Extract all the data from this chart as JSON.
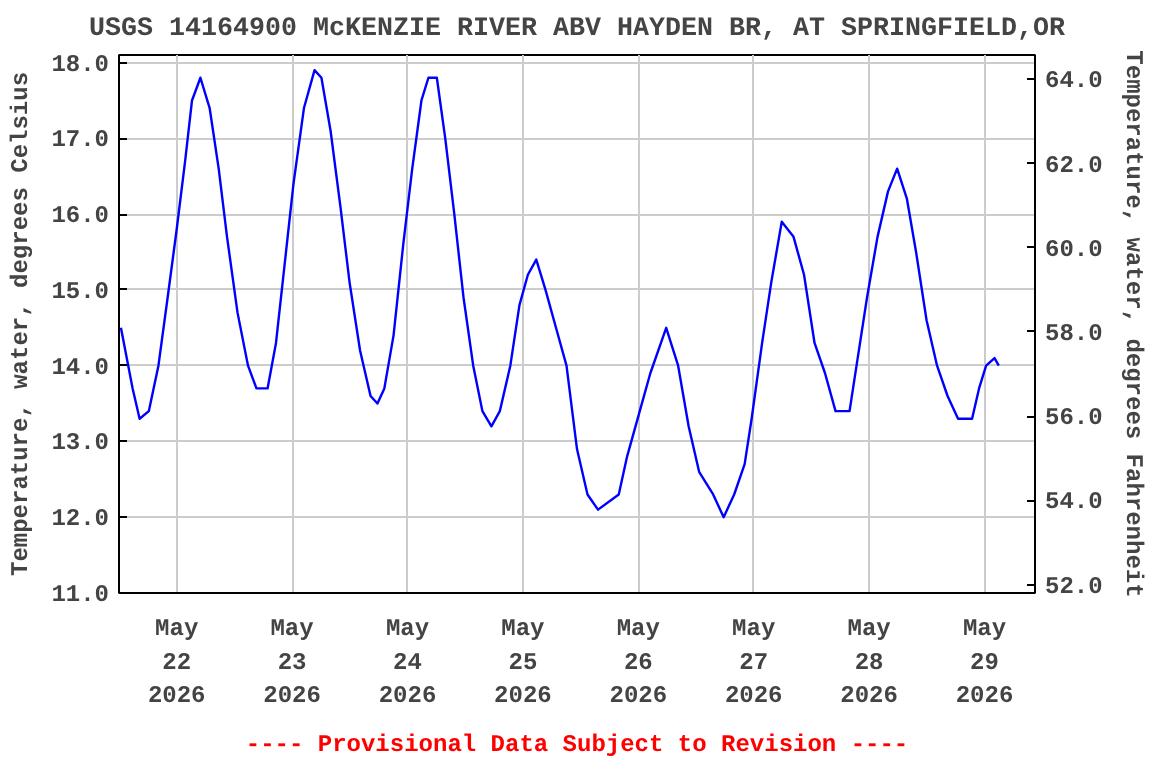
{
  "chart_data": {
    "type": "line",
    "title": "USGS 14164900 McKENZIE RIVER ABV HAYDEN BR, AT SPRINGFIELD,OR",
    "ylabel": "Temperature, water, degrees Celsius",
    "y2label": "Temperature, water, degrees Fahrenheit",
    "annotations": [
      "---- Provisional Data Subject to Revision ----"
    ],
    "x": [
      "2026-05-21T12:24",
      "2026-05-21T14:50",
      "2026-05-21T16:17",
      "2026-05-21T18:12",
      "2026-05-21T20:12",
      "2026-05-21T22:07",
      "2026-05-22T00:00",
      "2026-05-22T01:45",
      "2026-05-22T03:11",
      "2026-05-22T04:56",
      "2026-05-22T06:51",
      "2026-05-22T08:44",
      "2026-05-22T10:28",
      "2026-05-22T12:39",
      "2026-05-22T14:50",
      "2026-05-22T16:35",
      "2026-05-22T18:54",
      "2026-05-22T20:39",
      "2026-05-22T22:23",
      "2026-05-23T00:17",
      "2026-05-23T02:28",
      "2026-05-23T04:40",
      "2026-05-23T06:06",
      "2026-05-23T08:00",
      "2026-05-23T10:03",
      "2026-05-23T11:57",
      "2026-05-23T14:08",
      "2026-05-23T16:19",
      "2026-05-23T17:45",
      "2026-05-23T19:11",
      "2026-05-23T21:06",
      "2026-05-23T23:07",
      "2026-05-24T00:59",
      "2026-05-24T02:54",
      "2026-05-24T04:21",
      "2026-05-24T06:06",
      "2026-05-24T07:51",
      "2026-05-24T09:44",
      "2026-05-24T11:39",
      "2026-05-24T13:40",
      "2026-05-24T15:35",
      "2026-05-24T17:27",
      "2026-05-24T19:12",
      "2026-05-24T21:23",
      "2026-05-24T23:17",
      "2026-05-25T01:02",
      "2026-05-25T02:47",
      "2026-05-25T04:42",
      "2026-05-25T06:53",
      "2026-05-25T09:04",
      "2026-05-25T11:15",
      "2026-05-25T13:26",
      "2026-05-25T15:37",
      "2026-05-25T19:56",
      "2026-05-25T21:40",
      "2026-05-26T00:18",
      "2026-05-26T02:30",
      "2026-05-26T05:48",
      "2026-05-26T08:17",
      "2026-05-26T10:28",
      "2026-05-26T12:39",
      "2026-05-26T15:34",
      "2026-05-26T17:45",
      "2026-05-26T19:56",
      "2026-05-26T22:07",
      "2026-05-26T23:34",
      "2026-05-27T01:45",
      "2026-05-27T03:39",
      "2026-05-27T05:50",
      "2026-05-27T08:17",
      "2026-05-27T10:28",
      "2026-05-27T12:39",
      "2026-05-27T14:50",
      "2026-05-27T17:01",
      "2026-05-27T19:56",
      "2026-05-27T21:23",
      "2026-05-27T23:34",
      "2026-05-28T01:45",
      "2026-05-28T03:56",
      "2026-05-28T05:50",
      "2026-05-28T07:52",
      "2026-05-28T09:46",
      "2026-05-28T11:57",
      "2026-05-28T14:08",
      "2026-05-28T16:19",
      "2026-05-28T18:30",
      "2026-05-28T21:25",
      "2026-05-28T22:52",
      "2026-05-29T00:20",
      "2026-05-29T02:05",
      "2026-05-29T02:58"
    ],
    "series": [
      {
        "color": "#0000ff",
        "values": [
          14.5,
          13.7,
          13.3,
          13.4,
          14.0,
          14.9,
          15.8,
          16.7,
          17.5,
          17.8,
          17.4,
          16.6,
          15.7,
          14.7,
          14.0,
          13.7,
          13.7,
          14.3,
          15.3,
          16.4,
          17.4,
          17.9,
          17.8,
          17.1,
          16.1,
          15.1,
          14.2,
          13.6,
          13.5,
          13.7,
          14.4,
          15.6,
          16.6,
          17.5,
          17.8,
          17.8,
          17.0,
          16.0,
          14.9,
          14.0,
          13.4,
          13.2,
          13.4,
          14.0,
          14.8,
          15.2,
          15.4,
          15.0,
          14.5,
          14.0,
          12.9,
          12.3,
          12.1,
          12.3,
          12.8,
          13.4,
          13.9,
          14.5,
          14.0,
          13.2,
          12.6,
          12.3,
          12.0,
          12.3,
          12.7,
          13.3,
          14.3,
          15.1,
          15.9,
          15.7,
          15.2,
          14.3,
          13.9,
          13.4,
          13.4,
          14.0,
          14.9,
          15.7,
          16.3,
          16.6,
          16.2,
          15.5,
          14.6,
          14.0,
          13.6,
          13.3,
          13.3,
          13.7,
          14.0,
          14.1,
          14.0
        ]
      }
    ],
    "xlim": [
      "2026-05-21T12:00",
      "2026-05-29T10:30"
    ],
    "xticks": [
      {
        "value": "2026-05-22",
        "label": "May\n22\n2026"
      },
      {
        "value": "2026-05-23",
        "label": "May\n23\n2026"
      },
      {
        "value": "2026-05-24",
        "label": "May\n24\n2026"
      },
      {
        "value": "2026-05-25",
        "label": "May\n25\n2026"
      },
      {
        "value": "2026-05-26",
        "label": "May\n26\n2026"
      },
      {
        "value": "2026-05-27",
        "label": "May\n27\n2026"
      },
      {
        "value": "2026-05-28",
        "label": "May\n28\n2026"
      },
      {
        "value": "2026-05-29",
        "label": "May\n29\n2026"
      }
    ],
    "ylim": [
      11.0,
      18.1
    ],
    "yticks": [
      {
        "value": 11,
        "label": "11.0"
      },
      {
        "value": 12,
        "label": "12.0"
      },
      {
        "value": 13,
        "label": "13.0"
      },
      {
        "value": 14,
        "label": "14.0"
      },
      {
        "value": 15,
        "label": "15.0"
      },
      {
        "value": 16,
        "label": "16.0"
      },
      {
        "value": 17,
        "label": "17.0"
      },
      {
        "value": 18,
        "label": "18.0"
      }
    ],
    "y2lim": [
      51.8,
      64.58
    ],
    "y2ticks": [
      {
        "value": 52,
        "label": "52.0"
      },
      {
        "value": 54,
        "label": "54.0"
      },
      {
        "value": 56,
        "label": "56.0"
      },
      {
        "value": 58,
        "label": "58.0"
      },
      {
        "value": 60,
        "label": "60.0"
      },
      {
        "value": 62,
        "label": "62.0"
      },
      {
        "value": 64,
        "label": "64.0"
      }
    ],
    "grid": true,
    "line_style": "solid"
  }
}
